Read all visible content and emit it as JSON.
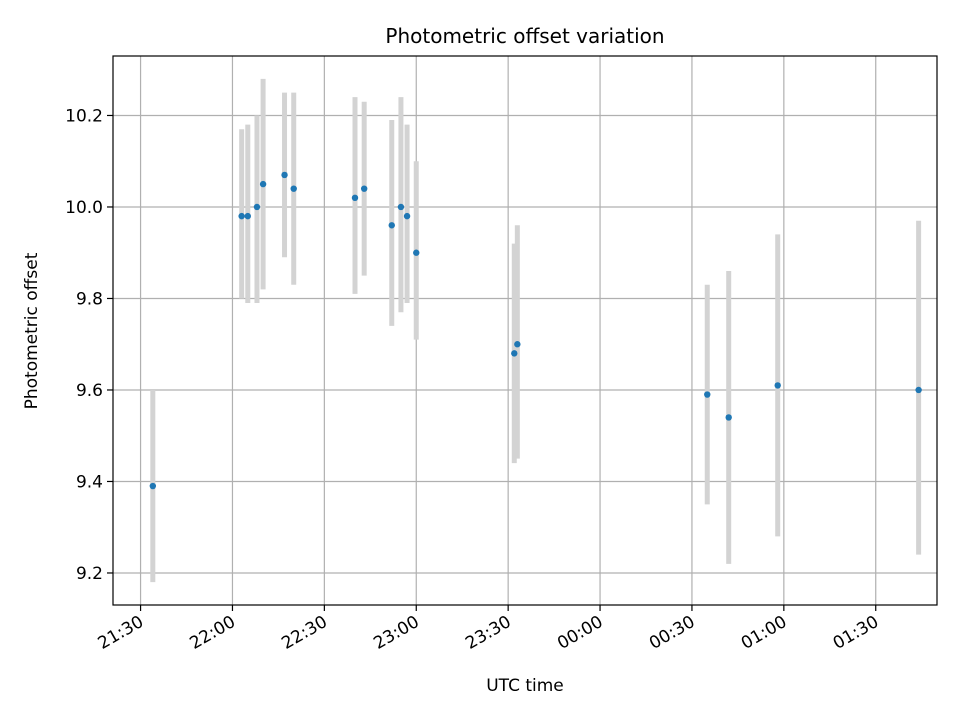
{
  "chart_data": {
    "type": "scatter",
    "title": "Photometric offset variation",
    "xlabel": "UTC time",
    "ylabel": "Photometric offset",
    "grid": true,
    "xlim": [
      "21:21",
      "01:50"
    ],
    "ylim": [
      9.13,
      10.33
    ],
    "x_ticks": [
      "21:30",
      "22:00",
      "22:30",
      "23:00",
      "23:30",
      "00:00",
      "00:30",
      "01:00",
      "01:30"
    ],
    "y_ticks": [
      "9.2",
      "9.4",
      "9.6",
      "9.8",
      "10.0",
      "10.2"
    ],
    "colors": {
      "point": "#1f77b4",
      "errorbar": "#d3d3d3",
      "grid": "#b0b0b0"
    },
    "points": [
      {
        "x": "21:34",
        "y": 9.39,
        "low": 9.18,
        "high": 9.6
      },
      {
        "x": "22:03",
        "y": 9.98,
        "low": 9.8,
        "high": 10.17
      },
      {
        "x": "22:05",
        "y": 9.98,
        "low": 9.79,
        "high": 10.18
      },
      {
        "x": "22:08",
        "y": 10.0,
        "low": 9.79,
        "high": 10.2
      },
      {
        "x": "22:10",
        "y": 10.05,
        "low": 9.82,
        "high": 10.28
      },
      {
        "x": "22:17",
        "y": 10.07,
        "low": 9.89,
        "high": 10.25
      },
      {
        "x": "22:20",
        "y": 10.04,
        "low": 9.83,
        "high": 10.25
      },
      {
        "x": "22:40",
        "y": 10.02,
        "low": 9.81,
        "high": 10.24
      },
      {
        "x": "22:43",
        "y": 10.04,
        "low": 9.85,
        "high": 10.23
      },
      {
        "x": "22:52",
        "y": 9.96,
        "low": 9.74,
        "high": 10.19
      },
      {
        "x": "22:55",
        "y": 10.0,
        "low": 9.77,
        "high": 10.24
      },
      {
        "x": "22:57",
        "y": 9.98,
        "low": 9.79,
        "high": 10.18
      },
      {
        "x": "23:00",
        "y": 9.9,
        "low": 9.71,
        "high": 10.1
      },
      {
        "x": "23:32",
        "y": 9.68,
        "low": 9.44,
        "high": 9.92
      },
      {
        "x": "23:33",
        "y": 9.7,
        "low": 9.45,
        "high": 9.96
      },
      {
        "x": "00:35",
        "y": 9.59,
        "low": 9.35,
        "high": 9.83
      },
      {
        "x": "00:42",
        "y": 9.54,
        "low": 9.22,
        "high": 9.86
      },
      {
        "x": "00:58",
        "y": 9.61,
        "low": 9.28,
        "high": 9.94
      },
      {
        "x": "01:44",
        "y": 9.6,
        "low": 9.24,
        "high": 9.97
      }
    ]
  }
}
